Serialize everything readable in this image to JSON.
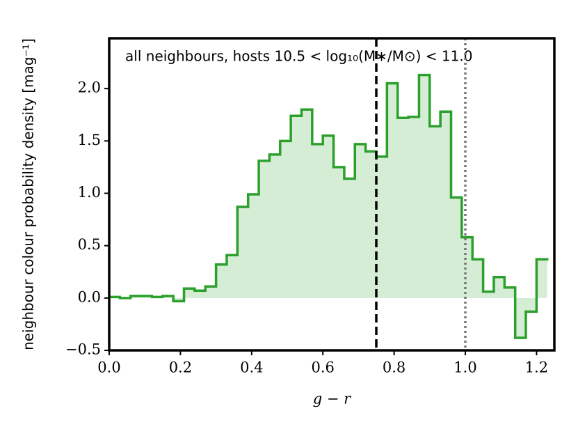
{
  "chart_data": {
    "type": "histogram",
    "title": "all neighbours, hosts 10.5 < log₁₀(M∗/M⊙) < 11.0",
    "x_label": "g − r",
    "y_label": "neighbour colour probability density [mag⁻¹]",
    "bins": [
      0.0,
      0.03,
      0.06,
      0.09,
      0.12,
      0.15,
      0.18,
      0.21,
      0.24,
      0.27,
      0.3,
      0.33,
      0.36,
      0.39,
      0.42,
      0.45,
      0.48,
      0.51,
      0.54,
      0.57,
      0.6,
      0.63,
      0.66,
      0.69,
      0.72,
      0.75,
      0.78,
      0.81,
      0.84,
      0.87,
      0.9,
      0.93,
      0.96,
      0.99,
      1.02,
      1.05,
      1.08,
      1.11,
      1.14,
      1.17,
      1.2,
      1.23
    ],
    "values": [
      0.01,
      0.0,
      0.02,
      0.02,
      0.01,
      0.02,
      -0.03,
      0.09,
      0.07,
      0.11,
      0.32,
      0.41,
      0.87,
      0.99,
      1.31,
      1.37,
      1.5,
      1.74,
      1.8,
      1.47,
      1.55,
      1.25,
      1.14,
      1.47,
      1.4,
      1.35,
      2.05,
      1.72,
      1.73,
      2.13,
      1.64,
      1.78,
      0.96,
      0.58,
      0.37,
      0.06,
      0.2,
      0.1,
      -0.38,
      -0.13,
      0.37
    ],
    "color": "#2ca02c",
    "xlim": [
      0,
      1.25
    ],
    "ylim": [
      -0.5,
      2.48
    ],
    "xticks": [
      {
        "value": 0,
        "label": "0.0"
      },
      {
        "value": 0.2,
        "label": "0.2"
      },
      {
        "value": 0.4,
        "label": "0.4"
      },
      {
        "value": 0.6,
        "label": "0.6"
      },
      {
        "value": 0.8,
        "label": "0.8"
      },
      {
        "value": 1.0,
        "label": "1.0"
      },
      {
        "value": 1.2,
        "label": "1.2"
      }
    ],
    "yticks": [
      {
        "value": -0.5,
        "label": "−0.5"
      },
      {
        "value": 0,
        "label": "0.0"
      },
      {
        "value": 0.5,
        "label": "0.5"
      },
      {
        "value": 1.0,
        "label": "1.0"
      },
      {
        "value": 1.5,
        "label": "1.5"
      },
      {
        "value": 2.0,
        "label": "2.0"
      }
    ],
    "vlines": [
      {
        "x": 0.75,
        "color": "#000000",
        "dash": "dashed"
      },
      {
        "x": 1.0,
        "color": "#777777",
        "dash": "dotted"
      }
    ]
  }
}
